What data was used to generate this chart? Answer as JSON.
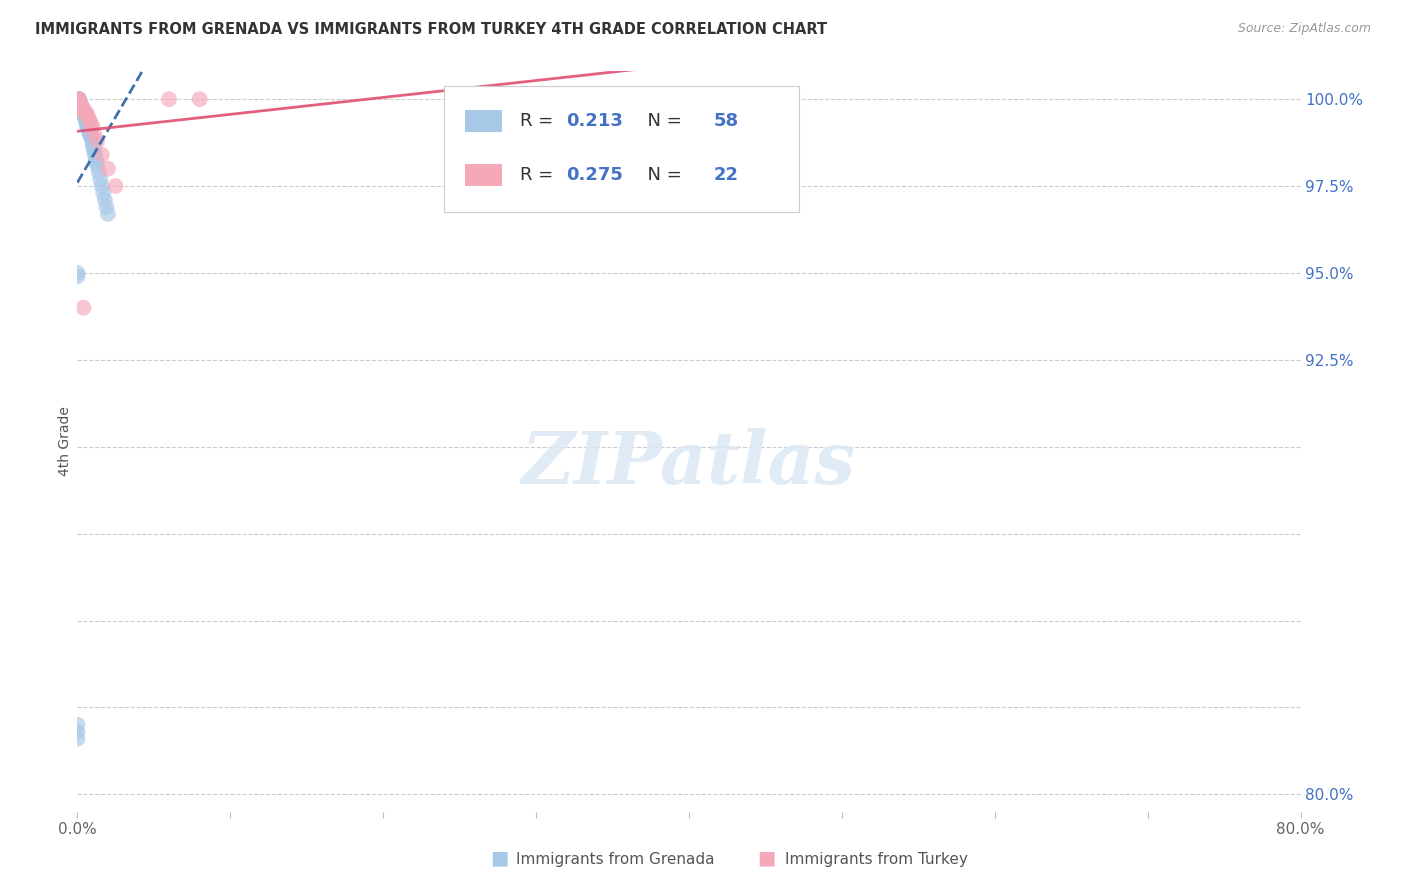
{
  "title": "IMMIGRANTS FROM GRENADA VS IMMIGRANTS FROM TURKEY 4TH GRADE CORRELATION CHART",
  "source": "Source: ZipAtlas.com",
  "ylabel": "4th Grade",
  "legend_label_grenada": "Immigrants from Grenada",
  "legend_label_turkey": "Immigrants from Turkey",
  "grenada_R": 0.213,
  "grenada_N": 58,
  "turkey_R": 0.275,
  "turkey_N": 22,
  "color_grenada": "#a8c8e8",
  "color_turkey": "#f4a8b8",
  "trendline_grenada_color": "#3060a0",
  "trendline_turkey_color": "#e05070",
  "xlim": [
    0.0,
    0.8
  ],
  "ylim": [
    0.795,
    1.008
  ],
  "ytick_positions": [
    0.8,
    0.825,
    0.85,
    0.875,
    0.9,
    0.925,
    0.95,
    0.975,
    1.0
  ],
  "ytick_labels": {
    "0.800": "80.0%",
    "0.825": "",
    "0.850": "",
    "0.875": "",
    "0.900": "",
    "0.925": "92.5%",
    "0.950": "95.0%",
    "0.975": "97.5%",
    "1.000": "100.0%"
  },
  "xtick_positions": [
    0.0,
    0.1,
    0.2,
    0.3,
    0.4,
    0.5,
    0.6,
    0.7,
    0.8
  ],
  "xtick_labels": [
    "0.0%",
    "",
    "",
    "",
    "",
    "",
    "",
    "",
    "80.0%"
  ],
  "background_color": "#ffffff",
  "axis_text_color": "#4472c4",
  "title_color": "#333333",
  "source_color": "#999999",
  "grid_color": "#cccccc",
  "legend_edge_color": "#cccccc",
  "grenada_x": [
    0.0005,
    0.0005,
    0.0005,
    0.001,
    0.001,
    0.001,
    0.001,
    0.001,
    0.0015,
    0.0015,
    0.002,
    0.002,
    0.0025,
    0.0025,
    0.003,
    0.003,
    0.003,
    0.0035,
    0.0035,
    0.004,
    0.004,
    0.004,
    0.0045,
    0.0045,
    0.005,
    0.005,
    0.0055,
    0.006,
    0.006,
    0.0065,
    0.0065,
    0.007,
    0.0075,
    0.008,
    0.008,
    0.0085,
    0.009,
    0.0095,
    0.01,
    0.01,
    0.0105,
    0.011,
    0.0115,
    0.012,
    0.0125,
    0.013,
    0.014,
    0.015,
    0.016,
    0.017,
    0.018,
    0.019,
    0.02,
    0.0001,
    0.0001,
    0.0001,
    0.0001,
    0.0001
  ],
  "grenada_y": [
    1.0,
    1.0,
    1.0,
    1.0,
    1.0,
    1.0,
    1.0,
    0.9985,
    0.999,
    0.999,
    0.999,
    0.998,
    0.998,
    0.997,
    0.998,
    0.997,
    0.997,
    0.997,
    0.996,
    0.997,
    0.996,
    0.996,
    0.996,
    0.995,
    0.995,
    0.995,
    0.994,
    0.994,
    0.993,
    0.993,
    0.992,
    0.992,
    0.991,
    0.991,
    0.99,
    0.99,
    0.989,
    0.989,
    0.988,
    0.987,
    0.986,
    0.985,
    0.984,
    0.983,
    0.982,
    0.981,
    0.979,
    0.977,
    0.975,
    0.973,
    0.971,
    0.969,
    0.967,
    0.95,
    0.949,
    0.82,
    0.818,
    0.816
  ],
  "turkey_x": [
    0.0005,
    0.001,
    0.001,
    0.0015,
    0.002,
    0.0025,
    0.003,
    0.004,
    0.005,
    0.006,
    0.007,
    0.008,
    0.009,
    0.01,
    0.011,
    0.013,
    0.016,
    0.02,
    0.004,
    0.06,
    0.08,
    0.025
  ],
  "turkey_y": [
    1.0,
    1.0,
    0.999,
    0.999,
    0.998,
    0.998,
    0.997,
    0.997,
    0.996,
    0.996,
    0.995,
    0.994,
    0.993,
    0.992,
    0.99,
    0.988,
    0.984,
    0.98,
    0.94,
    1.0,
    1.0,
    0.975
  ]
}
